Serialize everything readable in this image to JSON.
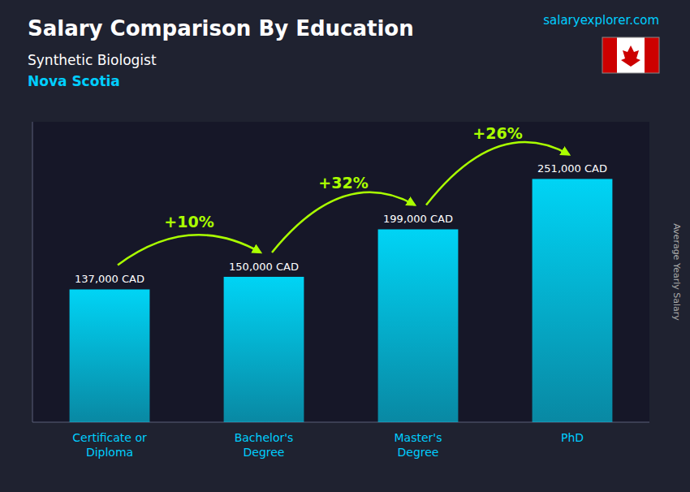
{
  "chart_data": {
    "type": "bar",
    "title": "Salary Comparison By Education",
    "subtitle": "Synthetic Biologist",
    "location": "Nova Scotia",
    "site_text": "salaryexplorer.com",
    "ylabel": "Average Yearly Salary",
    "categories": [
      "Certificate or\nDiploma",
      "Bachelor's\nDegree",
      "Master's\nDegree",
      "PhD"
    ],
    "values": [
      137000,
      150000,
      199000,
      251000
    ],
    "value_labels": [
      "137,000 CAD",
      "150,000 CAD",
      "199,000 CAD",
      "251,000 CAD"
    ],
    "data_labels": true,
    "annotations": [
      "+10%",
      "+32%",
      "+26%"
    ],
    "color": "#00d4f5",
    "ylim": [
      0,
      310000
    ],
    "yticks": [],
    "tick_labels": "x",
    "grid": false
  }
}
